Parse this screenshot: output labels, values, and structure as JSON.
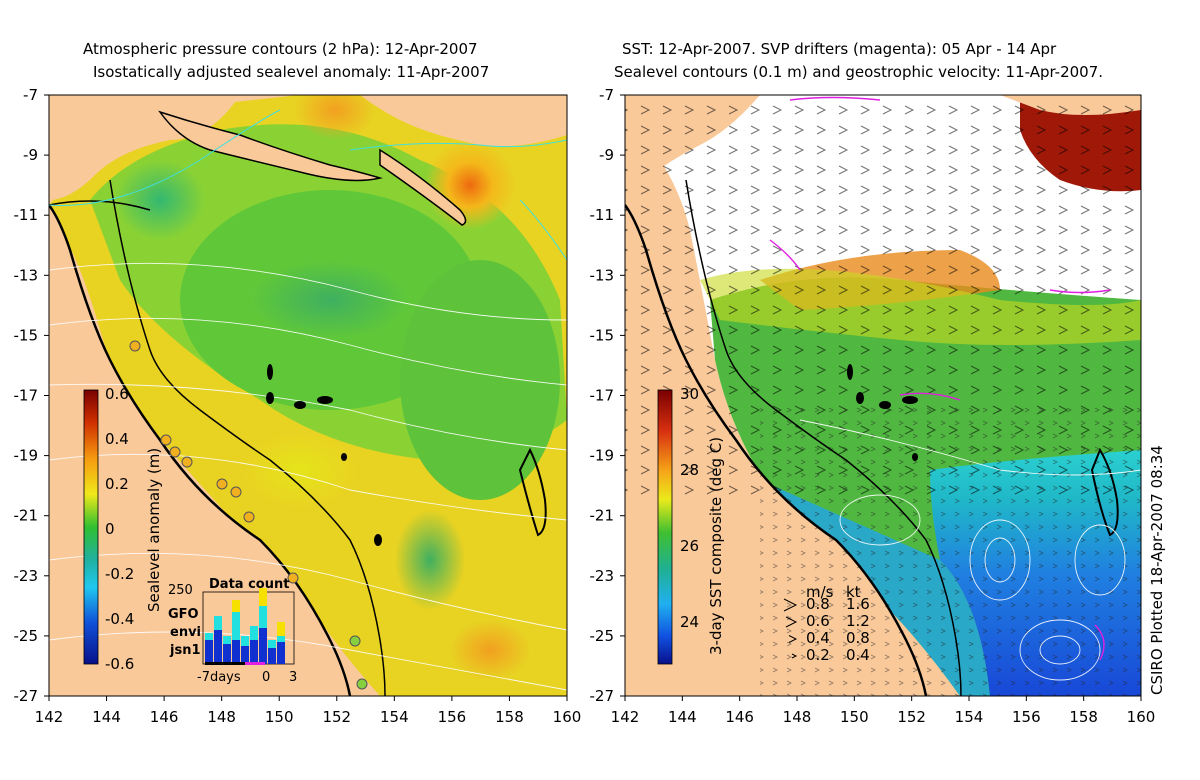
{
  "left_panel": {
    "title_line1": "Atmospheric pressure contours (2 hPa): 12-Apr-2007",
    "title_line2": "Isostatically adjusted sealevel anomaly: 11-Apr-2007",
    "colorbar": {
      "label": "Sealevel anomaly (m)",
      "ticks": [
        "0.6",
        "0.4",
        "0.2",
        "0",
        "-0.2",
        "-0.4",
        "-0.6"
      ]
    },
    "data_count": {
      "title": "Data count",
      "ymax_label": "250",
      "legend": [
        "GFO",
        "envi",
        "jsn1"
      ],
      "legend_colors": [
        "#f5e000",
        "#22e0e0",
        "#1030d0"
      ],
      "x_labels": [
        "-7days",
        "0",
        "3"
      ]
    }
  },
  "right_panel": {
    "title_line1": "SST: 12-Apr-2007. SVP drifters (magenta): 05 Apr - 14 Apr",
    "title_line2": "Sealevel contours (0.1 m) and geostrophic velocity: 11-Apr-2007.",
    "colorbar": {
      "label": "3-day SST composite (deg C)",
      "ticks": [
        "30",
        "28",
        "26",
        "24"
      ]
    },
    "velocity_key": {
      "headers": [
        "m/s",
        "kt"
      ],
      "rows": [
        [
          "0.8",
          "1.6"
        ],
        [
          "0.6",
          "1.2"
        ],
        [
          "0.4",
          "0.8"
        ],
        [
          "0.2",
          "0.4"
        ]
      ]
    },
    "stamp": "CSIRO Plotted 18-Apr-2007 08:34"
  },
  "axes": {
    "lat_labels": [
      "-7",
      "-9",
      "-11",
      "-13",
      "-15",
      "-17",
      "-19",
      "-21",
      "-23",
      "-25",
      "-27"
    ],
    "lon_labels": [
      "142",
      "144",
      "146",
      "148",
      "150",
      "152",
      "154",
      "156",
      "158",
      "160"
    ]
  },
  "colors": {
    "land": "#f9c99a",
    "coast": "#000000",
    "drifters": "#e020e0"
  }
}
